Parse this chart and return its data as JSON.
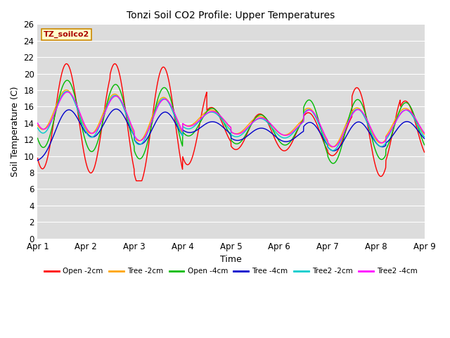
{
  "title": "Tonzi Soil CO2 Profile: Upper Temperatures",
  "xlabel": "Time",
  "ylabel": "Soil Temperature (C)",
  "ylim": [
    0,
    26
  ],
  "xlim": [
    0,
    8
  ],
  "xtick_positions": [
    0,
    1,
    2,
    3,
    4,
    5,
    6,
    7,
    8
  ],
  "xtick_labels": [
    "Apr 1",
    "Apr 2",
    "Apr 3",
    "Apr 4",
    "Apr 5",
    "Apr 6",
    "Apr 7",
    "Apr 8",
    "Apr 9"
  ],
  "ytick_vals": [
    0,
    2,
    4,
    6,
    8,
    10,
    12,
    14,
    16,
    18,
    20,
    22,
    24,
    26
  ],
  "bg_color": "#dcdcdc",
  "plot_label": "TZ_soilco2",
  "series": [
    {
      "name": "Open -2cm",
      "color": "#ff0000"
    },
    {
      "name": "Tree -2cm",
      "color": "#ffa500"
    },
    {
      "name": "Open -4cm",
      "color": "#00bb00"
    },
    {
      "name": "Tree -4cm",
      "color": "#0000cc"
    },
    {
      "name": "Tree2 -2cm",
      "color": "#00cccc"
    },
    {
      "name": "Tree2 -4cm",
      "color": "#ff00ff"
    }
  ]
}
